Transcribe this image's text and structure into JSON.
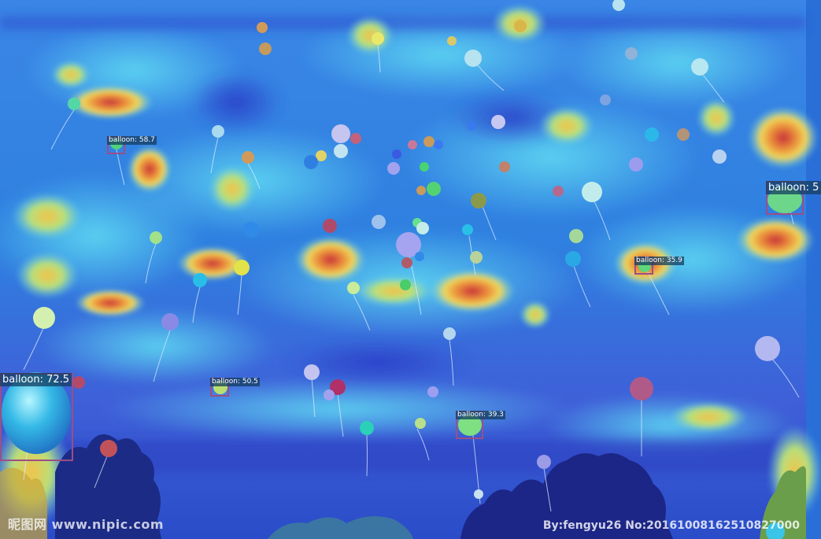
{
  "detections": [
    {
      "label": "balloon: 58.7"
    },
    {
      "label": "balloon: 5"
    },
    {
      "label": "balloon: 35.9"
    },
    {
      "label": "balloon: 72.5"
    },
    {
      "label": "balloon: 50.5"
    },
    {
      "label": "balloon: 39.3"
    }
  ],
  "watermark": {
    "left": "昵图网 www.nipic.com",
    "right": "By:fengyu26 No:20161008162510827000"
  },
  "colors": {
    "sky": "#2f7fe0",
    "heat_low": "#2b5ad6",
    "heat_mid": "#3ec6f0",
    "heat_warm": "#f2d24a",
    "heat_hot": "#d9382f",
    "box": "#9b4f86",
    "trees": "#1a2f8a"
  }
}
